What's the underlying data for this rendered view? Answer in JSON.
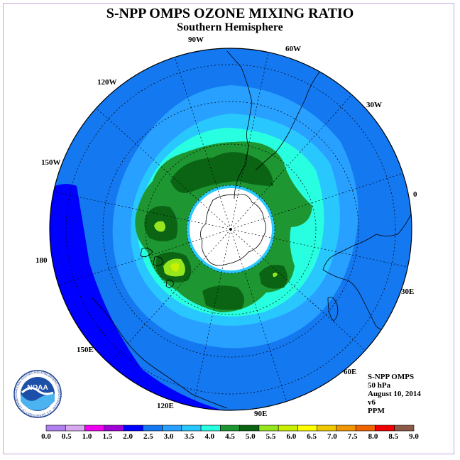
{
  "title": "S-NPP OMPS OZONE MIXING RATIO",
  "subtitle": "Southern Hemisphere",
  "info": {
    "line1": "S-NPP OMPS",
    "line2": "50 hPa",
    "line3": "August 10, 2014",
    "line4": "v6",
    "line5": "PPM"
  },
  "logo": {
    "text": "NOAA",
    "ring_text": "NATIONAL OCEANIC AND ATMOSPHERIC ADMINISTRATION · U.S. DEPARTMENT OF COMMERCE"
  },
  "longitude_labels": [
    "90W",
    "60W",
    "30W",
    "0",
    "30E",
    "60E",
    "90E",
    "120E",
    "150E",
    "180",
    "150W",
    "120W"
  ],
  "colorbar": {
    "ticks": [
      "0.0",
      "0.5",
      "1.0",
      "1.5",
      "2.0",
      "2.5",
      "3.0",
      "3.5",
      "4.0",
      "4.5",
      "5.0",
      "5.5",
      "6.0",
      "6.5",
      "7.0",
      "7.5",
      "8.0",
      "8.5",
      "9.0"
    ],
    "colors": [
      "#b080f0",
      "#d8a8f0",
      "#f000f0",
      "#a000d8",
      "#0000ff",
      "#1478f0",
      "#28a0ff",
      "#28c8ff",
      "#28ffe0",
      "#1e9632",
      "#0a6414",
      "#96e61e",
      "#c8f000",
      "#ffff00",
      "#f0c800",
      "#f09600",
      "#f06400",
      "#f00000",
      "#8c5a46"
    ]
  },
  "map_colors": {
    "ring_2_0": "#0000ff",
    "ring_2_5": "#1478f0",
    "ring_3_0": "#28a0ff",
    "ring_3_5": "#28c8ff",
    "ring_4_0": "#28ffe0",
    "ring_4_5": "#1e9632",
    "ring_5_0": "#0a6414",
    "ring_5_5": "#96e61e",
    "missing": "#ffffff"
  }
}
